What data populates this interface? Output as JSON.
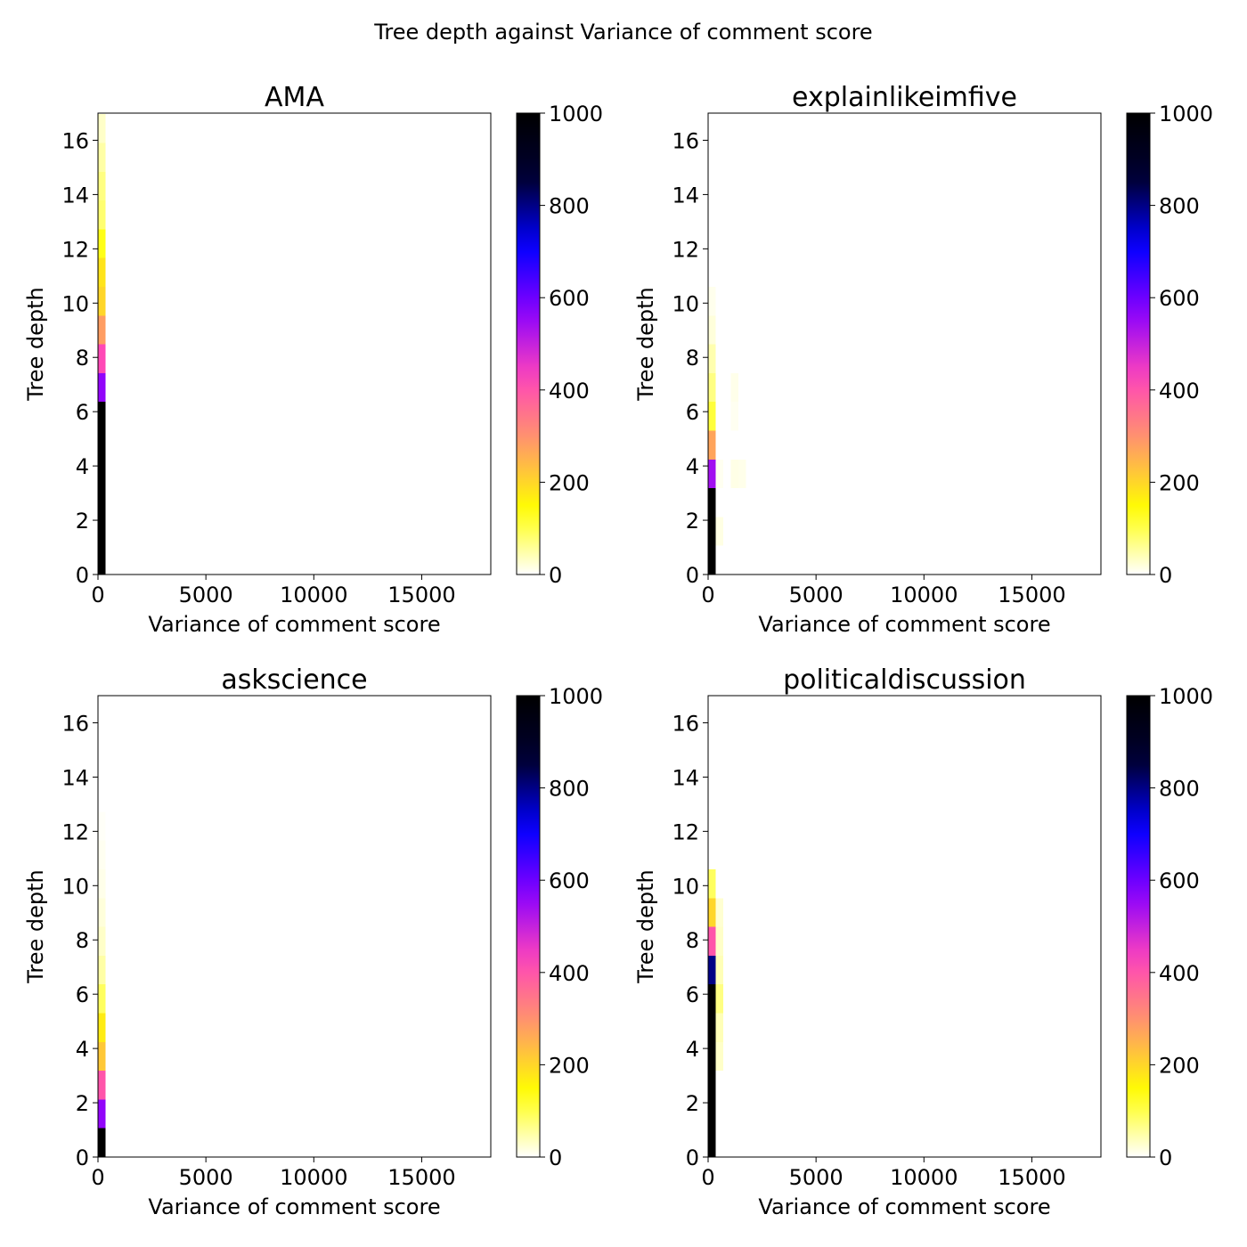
{
  "figure_title": "Tree depth against Variance of comment score",
  "colormap": [
    "#ffffff",
    "#ffff00",
    "#ff9966",
    "#ff44bb",
    "#8800ff",
    "#0000ff",
    "#000033",
    "#000000"
  ],
  "chart_data": [
    {
      "type": "heatmap",
      "title": "AMA",
      "xlabel": "Variance of comment score",
      "ylabel": "Tree depth",
      "xlim": [
        0,
        18200
      ],
      "ylim": [
        0,
        17
      ],
      "x_ticks": [
        0,
        5000,
        10000,
        15000
      ],
      "y_ticks": [
        0,
        2,
        4,
        6,
        8,
        10,
        12,
        14,
        16
      ],
      "colorbar": {
        "range": [
          0,
          1000
        ],
        "ticks": [
          0,
          200,
          400,
          600,
          800,
          1000
        ]
      },
      "bin_width": 350,
      "bin_height": 1.06,
      "cells": [
        {
          "x": 0,
          "depth": 0,
          "count": 1000
        },
        {
          "x": 0,
          "depth": 1,
          "count": 1000
        },
        {
          "x": 0,
          "depth": 2,
          "count": 1000
        },
        {
          "x": 0,
          "depth": 3,
          "count": 1000
        },
        {
          "x": 0,
          "depth": 4,
          "count": 1000
        },
        {
          "x": 0,
          "depth": 5,
          "count": 1000
        },
        {
          "x": 0,
          "depth": 6,
          "count": 560
        },
        {
          "x": 0,
          "depth": 7,
          "count": 420
        },
        {
          "x": 0,
          "depth": 8,
          "count": 280
        },
        {
          "x": 0,
          "depth": 9,
          "count": 200
        },
        {
          "x": 0,
          "depth": 10,
          "count": 180
        },
        {
          "x": 0,
          "depth": 11,
          "count": 130
        },
        {
          "x": 0,
          "depth": 12,
          "count": 80
        },
        {
          "x": 0,
          "depth": 13,
          "count": 70
        },
        {
          "x": 0,
          "depth": 14,
          "count": 50
        },
        {
          "x": 0,
          "depth": 15,
          "count": 30
        }
      ]
    },
    {
      "type": "heatmap",
      "title": "explainlikeimfive",
      "xlabel": "Variance of comment score",
      "ylabel": "Tree depth",
      "xlim": [
        0,
        18200
      ],
      "ylim": [
        0,
        17
      ],
      "x_ticks": [
        0,
        5000,
        10000,
        15000
      ],
      "y_ticks": [
        0,
        2,
        4,
        6,
        8,
        10,
        12,
        14,
        16
      ],
      "colorbar": {
        "range": [
          0,
          1000
        ],
        "ticks": [
          0,
          200,
          400,
          600,
          800,
          1000
        ]
      },
      "bin_width": 350,
      "bin_height": 1.06,
      "cells": [
        {
          "x": 0,
          "depth": 0,
          "count": 1000
        },
        {
          "x": 0,
          "depth": 1,
          "count": 1000
        },
        {
          "x": 0,
          "depth": 2,
          "count": 1000
        },
        {
          "x": 0,
          "depth": 3,
          "count": 540
        },
        {
          "x": 0,
          "depth": 4,
          "count": 270
        },
        {
          "x": 0,
          "depth": 5,
          "count": 110
        },
        {
          "x": 0,
          "depth": 6,
          "count": 70
        },
        {
          "x": 0,
          "depth": 7,
          "count": 45
        },
        {
          "x": 0,
          "depth": 8,
          "count": 20
        },
        {
          "x": 0,
          "depth": 9,
          "count": 10
        },
        {
          "x": 350,
          "depth": 1,
          "count": 15
        },
        {
          "x": 350,
          "depth": 3,
          "count": 8
        },
        {
          "x": 1050,
          "depth": 5,
          "count": 8
        },
        {
          "x": 1050,
          "depth": 6,
          "count": 12
        },
        {
          "x": 1050,
          "depth": 3,
          "count": 14
        },
        {
          "x": 1400,
          "depth": 3,
          "count": 12
        }
      ]
    },
    {
      "type": "heatmap",
      "title": "askscience",
      "xlabel": "Variance of comment score",
      "ylabel": "Tree depth",
      "xlim": [
        0,
        18200
      ],
      "ylim": [
        0,
        17
      ],
      "x_ticks": [
        0,
        5000,
        10000,
        15000
      ],
      "y_ticks": [
        0,
        2,
        4,
        6,
        8,
        10,
        12,
        14,
        16
      ],
      "colorbar": {
        "range": [
          0,
          1000
        ],
        "ticks": [
          0,
          200,
          400,
          600,
          800,
          1000
        ]
      },
      "bin_width": 350,
      "bin_height": 1.06,
      "cells": [
        {
          "x": 0,
          "depth": 0,
          "count": 1000
        },
        {
          "x": 0,
          "depth": 1,
          "count": 560
        },
        {
          "x": 0,
          "depth": 2,
          "count": 400
        },
        {
          "x": 0,
          "depth": 3,
          "count": 220
        },
        {
          "x": 0,
          "depth": 4,
          "count": 170
        },
        {
          "x": 0,
          "depth": 5,
          "count": 90
        },
        {
          "x": 0,
          "depth": 6,
          "count": 50
        },
        {
          "x": 0,
          "depth": 7,
          "count": 30
        },
        {
          "x": 0,
          "depth": 8,
          "count": 20
        },
        {
          "x": 0,
          "depth": 9,
          "count": 12
        },
        {
          "x": 0,
          "depth": 10,
          "count": 8
        },
        {
          "x": 0,
          "depth": 11,
          "count": 4
        }
      ]
    },
    {
      "type": "heatmap",
      "title": "politicaldiscussion",
      "xlabel": "Variance of comment score",
      "ylabel": "Tree depth",
      "xlim": [
        0,
        18200
      ],
      "ylim": [
        0,
        17
      ],
      "x_ticks": [
        0,
        5000,
        10000,
        15000
      ],
      "y_ticks": [
        0,
        2,
        4,
        6,
        8,
        10,
        12,
        14,
        16
      ],
      "colorbar": {
        "range": [
          0,
          1000
        ],
        "ticks": [
          0,
          200,
          400,
          600,
          800,
          1000
        ]
      },
      "bin_width": 350,
      "bin_height": 1.06,
      "cells": [
        {
          "x": 0,
          "depth": 0,
          "count": 1000
        },
        {
          "x": 0,
          "depth": 1,
          "count": 1000
        },
        {
          "x": 0,
          "depth": 2,
          "count": 1000
        },
        {
          "x": 0,
          "depth": 3,
          "count": 1000
        },
        {
          "x": 0,
          "depth": 4,
          "count": 1000
        },
        {
          "x": 0,
          "depth": 5,
          "count": 1000
        },
        {
          "x": 0,
          "depth": 6,
          "count": 800
        },
        {
          "x": 0,
          "depth": 7,
          "count": 400
        },
        {
          "x": 0,
          "depth": 8,
          "count": 200
        },
        {
          "x": 0,
          "depth": 9,
          "count": 90
        },
        {
          "x": 350,
          "depth": 3,
          "count": 30
        },
        {
          "x": 350,
          "depth": 4,
          "count": 40
        },
        {
          "x": 350,
          "depth": 5,
          "count": 70
        },
        {
          "x": 350,
          "depth": 6,
          "count": 40
        },
        {
          "x": 350,
          "depth": 7,
          "count": 30
        },
        {
          "x": 350,
          "depth": 8,
          "count": 25
        }
      ]
    }
  ]
}
